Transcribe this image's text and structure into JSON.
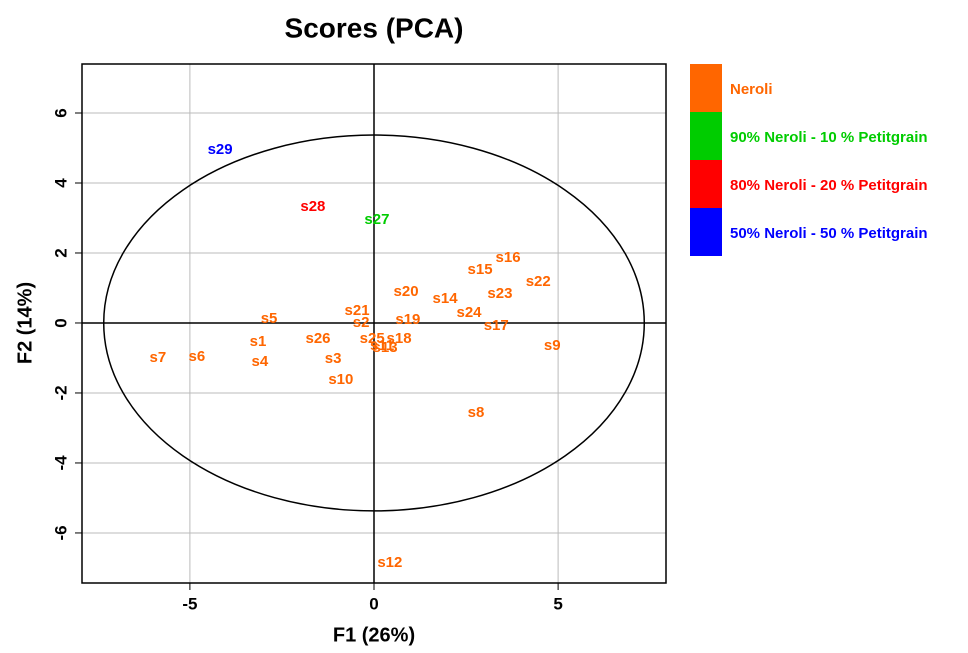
{
  "chart_data": {
    "type": "scatter",
    "title": "Scores (PCA)",
    "x_label": "F1 (26%)",
    "y_label": "F2 (14%)",
    "xlim": [
      -7.93,
      7.93
    ],
    "ylim": [
      -7.43,
      7.4
    ],
    "xticks": [
      -5,
      0,
      5
    ],
    "yticks": [
      -6,
      -4,
      -2,
      0,
      2,
      4,
      6
    ],
    "grid": true,
    "zero_lines": true,
    "ellipse": {
      "rx": 7.34,
      "ry": 5.37
    },
    "legend": "right",
    "series": [
      {
        "name": "Neroli",
        "color": "#ff6600",
        "labels": [
          "s1",
          "s2",
          "s3",
          "s4",
          "s5",
          "s6",
          "s7",
          "s8",
          "s9",
          "s10",
          "s11",
          "s12",
          "s13",
          "s14",
          "s15",
          "s16",
          "s17",
          "s18",
          "s19",
          "s20",
          "s21",
          "s22",
          "s23",
          "s24",
          "s25",
          "s26"
        ],
        "x": [
          -3.15,
          -0.35,
          -1.11,
          -3.1,
          -2.85,
          -4.81,
          -5.87,
          2.77,
          4.84,
          -0.9,
          0.22,
          0.43,
          0.3,
          1.93,
          2.88,
          3.64,
          3.32,
          0.68,
          0.92,
          0.87,
          -0.46,
          4.46,
          3.42,
          2.58,
          -0.05,
          -1.52
        ],
        "y": [
          -0.54,
          0,
          -1.03,
          -1.11,
          0.11,
          -0.97,
          -1.0,
          -2.57,
          -0.66,
          -1.63,
          -0.66,
          -6.86,
          -0.72,
          0.69,
          1.51,
          1.86,
          -0.09,
          -0.46,
          0.09,
          0.89,
          0.34,
          1.17,
          0.83,
          0.29,
          -0.46,
          -0.46
        ]
      },
      {
        "name": "90% Neroli - 10 % Petitgrain",
        "color": "#00cc00",
        "labels": [
          "s27"
        ],
        "x": [
          0.08
        ],
        "y": [
          2.94
        ]
      },
      {
        "name": "80% Neroli - 20 % Petitgrain",
        "color": "#ff0000",
        "labels": [
          "s28"
        ],
        "x": [
          -1.66
        ],
        "y": [
          3.31
        ]
      },
      {
        "name": "50% Neroli - 50 % Petitgrain",
        "color": "#0000ff",
        "labels": [
          "s29"
        ],
        "x": [
          -4.18
        ],
        "y": [
          4.94
        ]
      }
    ]
  }
}
